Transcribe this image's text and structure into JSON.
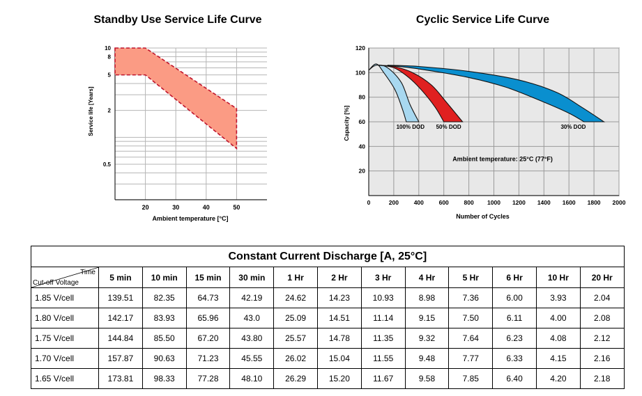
{
  "chart_data": [
    {
      "type": "area",
      "title": "Standby Use Service Life Curve",
      "xlabel": "Ambient temperature [°C]",
      "ylabel": "Service life [Years]",
      "x_ticks": [
        "20",
        "30",
        "40",
        "50"
      ],
      "y_ticks": [
        "0.5",
        "2",
        "5",
        "8",
        "10"
      ],
      "y_scale": "log",
      "xlim": [
        10,
        60
      ],
      "ylim": [
        0.2,
        10
      ],
      "grid": true,
      "color": "#fb9b84",
      "band": {
        "x": [
          10,
          20,
          50
        ],
        "upper": [
          10,
          10,
          2.1
        ],
        "lower": [
          5,
          5,
          0.75
        ]
      }
    },
    {
      "type": "area",
      "title": "Cyclic Service Life Curve",
      "xlabel": "Number of Cycles",
      "ylabel": "Capacity [%]",
      "x_ticks": [
        "0",
        "200",
        "400",
        "600",
        "800",
        "1000",
        "1200",
        "1400",
        "1600",
        "1800",
        "2000"
      ],
      "y_ticks": [
        "20",
        "40",
        "60",
        "80",
        "100",
        "120"
      ],
      "xlim": [
        0,
        2000
      ],
      "ylim": [
        0,
        120
      ],
      "grid": true,
      "annotation": "Ambient temperature: 25°C (77°F)",
      "series": [
        {
          "name": "100% DOD",
          "color": "#a8d8f0",
          "upper": [
            [
              0,
              102
            ],
            [
              60,
              106
            ],
            [
              150,
              104
            ],
            [
              260,
              92
            ],
            [
              330,
              74
            ],
            [
              400,
              60
            ]
          ],
          "lower": [
            [
              0,
              102
            ],
            [
              60,
              107
            ],
            [
              120,
              100
            ],
            [
              210,
              86
            ],
            [
              270,
              70
            ],
            [
              300,
              60
            ]
          ]
        },
        {
          "name": "50% DOD",
          "color": "#e02020",
          "upper": [
            [
              80,
              106
            ],
            [
              200,
              105
            ],
            [
              350,
              100
            ],
            [
              500,
              90
            ],
            [
              620,
              76
            ],
            [
              750,
              60
            ]
          ],
          "lower": [
            [
              80,
              106
            ],
            [
              200,
              104
            ],
            [
              320,
              96
            ],
            [
              420,
              86
            ],
            [
              530,
              72
            ],
            [
              600,
              60
            ]
          ]
        },
        {
          "name": "30% DOD",
          "color": "#0a8fcf",
          "upper": [
            [
              150,
              106
            ],
            [
              400,
              105
            ],
            [
              800,
              101
            ],
            [
              1200,
              94
            ],
            [
              1500,
              84
            ],
            [
              1700,
              72
            ],
            [
              1880,
              60
            ]
          ],
          "lower": [
            [
              150,
              106
            ],
            [
              400,
              103
            ],
            [
              800,
              96
            ],
            [
              1100,
              88
            ],
            [
              1400,
              76
            ],
            [
              1600,
              67
            ],
            [
              1720,
              60
            ]
          ]
        }
      ]
    },
    {
      "type": "table",
      "title": "Constant Current Discharge [A, 25°C]",
      "corner_top": "Time",
      "corner_bottom": "Cut-off Voltage",
      "columns": [
        "5 min",
        "10 min",
        "15 min",
        "30 min",
        "1 Hr",
        "2 Hr",
        "3 Hr",
        "4 Hr",
        "5 Hr",
        "6 Hr",
        "10 Hr",
        "20 Hr"
      ],
      "rows": [
        {
          "label": "1.85 V/cell",
          "values": [
            "139.51",
            "82.35",
            "64.73",
            "42.19",
            "24.62",
            "14.23",
            "10.93",
            "8.98",
            "7.36",
            "6.00",
            "3.93",
            "2.04"
          ]
        },
        {
          "label": "1.80 V/cell",
          "values": [
            "142.17",
            "83.93",
            "65.96",
            "43.0",
            "25.09",
            "14.51",
            "11.14",
            "9.15",
            "7.50",
            "6.11",
            "4.00",
            "2.08"
          ]
        },
        {
          "label": "1.75 V/cell",
          "values": [
            "144.84",
            "85.50",
            "67.20",
            "43.80",
            "25.57",
            "14.78",
            "11.35",
            "9.32",
            "7.64",
            "6.23",
            "4.08",
            "2.12"
          ]
        },
        {
          "label": "1.70 V/cell",
          "values": [
            "157.87",
            "90.63",
            "71.23",
            "45.55",
            "26.02",
            "15.04",
            "11.55",
            "9.48",
            "7.77",
            "6.33",
            "4.15",
            "2.16"
          ]
        },
        {
          "label": "1.65 V/cell",
          "values": [
            "173.81",
            "98.33",
            "77.28",
            "48.10",
            "26.29",
            "15.20",
            "11.67",
            "9.58",
            "7.85",
            "6.40",
            "4.20",
            "2.18"
          ]
        }
      ]
    }
  ]
}
